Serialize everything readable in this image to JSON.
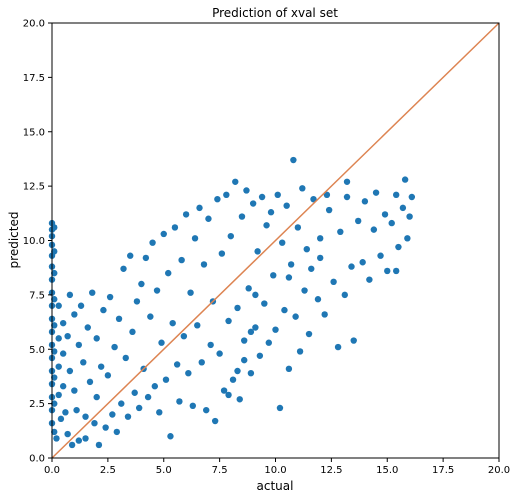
{
  "chart_data": {
    "type": "scatter",
    "title": "Prediction of xval set",
    "xlabel": "actual",
    "ylabel": "predicted",
    "xlim": [
      0.0,
      20.0
    ],
    "ylim": [
      0.0,
      20.0
    ],
    "xticks": [
      "0.0",
      "2.5",
      "5.0",
      "7.5",
      "10.0",
      "12.5",
      "15.0",
      "17.5",
      "20.0"
    ],
    "yticks": [
      "0.0",
      "2.5",
      "5.0",
      "7.5",
      "10.0",
      "12.5",
      "15.0",
      "17.5",
      "20.0"
    ],
    "grid": false,
    "series": [
      {
        "kind": "points",
        "color": "#1f77b4",
        "points": [
          [
            0.0,
            10.8
          ],
          [
            0.0,
            10.5
          ],
          [
            0.0,
            10.2
          ],
          [
            0.0,
            9.8
          ],
          [
            0.0,
            9.3
          ],
          [
            0.0,
            8.8
          ],
          [
            0.0,
            8.2
          ],
          [
            0.0,
            7.6
          ],
          [
            0.0,
            7.0
          ],
          [
            0.0,
            6.4
          ],
          [
            0.0,
            5.8
          ],
          [
            0.0,
            5.2
          ],
          [
            0.0,
            4.6
          ],
          [
            0.0,
            4.0
          ],
          [
            0.0,
            3.4
          ],
          [
            0.0,
            2.8
          ],
          [
            0.0,
            2.2
          ],
          [
            0.0,
            1.6
          ],
          [
            0.1,
            10.6
          ],
          [
            0.1,
            9.5
          ],
          [
            0.1,
            8.5
          ],
          [
            0.1,
            7.3
          ],
          [
            0.1,
            6.1
          ],
          [
            0.1,
            4.9
          ],
          [
            0.1,
            3.7
          ],
          [
            0.1,
            2.5
          ],
          [
            0.1,
            1.2
          ],
          [
            0.2,
            0.9
          ],
          [
            0.3,
            7.0
          ],
          [
            0.3,
            5.5
          ],
          [
            0.3,
            4.2
          ],
          [
            0.3,
            2.9
          ],
          [
            0.4,
            1.8
          ],
          [
            0.5,
            6.2
          ],
          [
            0.5,
            4.8
          ],
          [
            0.5,
            3.3
          ],
          [
            0.6,
            2.1
          ],
          [
            0.7,
            5.6
          ],
          [
            0.7,
            1.1
          ],
          [
            0.8,
            7.5
          ],
          [
            0.8,
            4.0
          ],
          [
            0.9,
            0.6
          ],
          [
            1.0,
            6.6
          ],
          [
            1.0,
            3.1
          ],
          [
            1.1,
            2.2
          ],
          [
            1.2,
            5.2
          ],
          [
            1.2,
            0.8
          ],
          [
            1.3,
            7.0
          ],
          [
            1.4,
            4.4
          ],
          [
            1.5,
            1.9
          ],
          [
            1.5,
            0.9
          ],
          [
            1.6,
            6.0
          ],
          [
            1.7,
            3.5
          ],
          [
            1.8,
            7.6
          ],
          [
            1.9,
            1.6
          ],
          [
            2.0,
            5.5
          ],
          [
            2.0,
            2.8
          ],
          [
            2.1,
            0.6
          ],
          [
            2.2,
            4.2
          ],
          [
            2.3,
            6.8
          ],
          [
            2.4,
            1.4
          ],
          [
            2.5,
            3.8
          ],
          [
            2.6,
            7.4
          ],
          [
            2.7,
            2.0
          ],
          [
            2.8,
            5.1
          ],
          [
            2.9,
            1.2
          ],
          [
            3.0,
            6.4
          ],
          [
            3.1,
            2.5
          ],
          [
            3.2,
            8.7
          ],
          [
            3.3,
            4.6
          ],
          [
            3.4,
            1.9
          ],
          [
            3.5,
            9.3
          ],
          [
            3.6,
            5.8
          ],
          [
            3.7,
            3.0
          ],
          [
            3.8,
            7.2
          ],
          [
            3.9,
            2.3
          ],
          [
            4.0,
            8.0
          ],
          [
            4.1,
            4.1
          ],
          [
            4.2,
            9.2
          ],
          [
            4.3,
            2.8
          ],
          [
            4.4,
            6.5
          ],
          [
            4.5,
            9.9
          ],
          [
            4.6,
            3.3
          ],
          [
            4.7,
            7.7
          ],
          [
            4.8,
            2.1
          ],
          [
            4.9,
            5.3
          ],
          [
            5.0,
            10.3
          ],
          [
            5.1,
            3.6
          ],
          [
            5.2,
            8.5
          ],
          [
            5.3,
            1.0
          ],
          [
            5.4,
            6.2
          ],
          [
            5.5,
            10.6
          ],
          [
            5.6,
            4.3
          ],
          [
            5.7,
            2.6
          ],
          [
            5.8,
            9.1
          ],
          [
            5.9,
            5.6
          ],
          [
            6.0,
            11.2
          ],
          [
            6.1,
            3.9
          ],
          [
            6.2,
            7.6
          ],
          [
            6.3,
            2.4
          ],
          [
            6.4,
            10.1
          ],
          [
            6.5,
            6.1
          ],
          [
            6.6,
            11.5
          ],
          [
            6.7,
            4.4
          ],
          [
            6.8,
            8.9
          ],
          [
            6.9,
            2.2
          ],
          [
            7.0,
            11.0
          ],
          [
            7.1,
            5.2
          ],
          [
            7.2,
            7.2
          ],
          [
            7.3,
            1.7
          ],
          [
            7.4,
            11.9
          ],
          [
            7.5,
            4.8
          ],
          [
            7.6,
            9.4
          ],
          [
            7.7,
            3.1
          ],
          [
            7.8,
            12.1
          ],
          [
            7.9,
            6.3
          ],
          [
            8.0,
            10.2
          ],
          [
            8.1,
            3.6
          ],
          [
            8.2,
            12.7
          ],
          [
            8.3,
            6.9
          ],
          [
            8.4,
            2.7
          ],
          [
            8.5,
            11.1
          ],
          [
            8.6,
            5.4
          ],
          [
            8.7,
            12.3
          ],
          [
            8.8,
            7.8
          ],
          [
            8.9,
            3.9
          ],
          [
            9.0,
            11.7
          ],
          [
            9.1,
            6.0
          ],
          [
            9.2,
            9.5
          ],
          [
            9.3,
            4.7
          ],
          [
            9.4,
            12.0
          ],
          [
            9.5,
            7.1
          ],
          [
            9.6,
            10.7
          ],
          [
            9.7,
            5.3
          ],
          [
            9.8,
            11.3
          ],
          [
            9.9,
            8.4
          ],
          [
            10.0,
            5.9
          ],
          [
            10.1,
            12.1
          ],
          [
            10.2,
            2.3
          ],
          [
            10.3,
            9.9
          ],
          [
            10.4,
            6.8
          ],
          [
            10.5,
            11.6
          ],
          [
            10.6,
            4.1
          ],
          [
            10.7,
            8.9
          ],
          [
            10.8,
            13.7
          ],
          [
            10.9,
            6.5
          ],
          [
            11.0,
            10.6
          ],
          [
            11.1,
            4.9
          ],
          [
            11.2,
            12.4
          ],
          [
            11.3,
            7.7
          ],
          [
            11.4,
            9.6
          ],
          [
            11.5,
            5.7
          ],
          [
            11.7,
            11.9
          ],
          [
            11.9,
            7.3
          ],
          [
            12.0,
            10.1
          ],
          [
            12.2,
            6.6
          ],
          [
            12.4,
            11.4
          ],
          [
            12.6,
            8.1
          ],
          [
            12.8,
            5.1
          ],
          [
            12.9,
            10.4
          ],
          [
            13.1,
            7.5
          ],
          [
            13.2,
            12.0
          ],
          [
            13.4,
            8.8
          ],
          [
            13.5,
            5.4
          ],
          [
            13.7,
            10.9
          ],
          [
            13.9,
            9.0
          ],
          [
            14.0,
            11.8
          ],
          [
            14.2,
            8.2
          ],
          [
            14.4,
            10.5
          ],
          [
            14.5,
            12.2
          ],
          [
            14.7,
            9.3
          ],
          [
            14.9,
            11.2
          ],
          [
            15.0,
            8.6
          ],
          [
            15.2,
            10.8
          ],
          [
            15.4,
            12.1
          ],
          [
            15.5,
            9.7
          ],
          [
            15.7,
            11.5
          ],
          [
            15.8,
            12.8
          ],
          [
            15.9,
            10.1
          ],
          [
            16.0,
            11.1
          ],
          [
            16.1,
            12.0
          ],
          [
            15.4,
            8.6
          ],
          [
            13.2,
            12.7
          ],
          [
            12.3,
            12.1
          ],
          [
            12.0,
            9.2
          ],
          [
            11.6,
            8.7
          ],
          [
            10.6,
            8.3
          ],
          [
            9.1,
            7.5
          ],
          [
            8.9,
            5.8
          ],
          [
            8.6,
            4.5
          ],
          [
            8.3,
            4.0
          ],
          [
            7.9,
            2.9
          ]
        ]
      },
      {
        "kind": "line",
        "color": "#dd8452",
        "points": [
          [
            0.0,
            0.0
          ],
          [
            20.0,
            20.0
          ]
        ]
      }
    ]
  }
}
